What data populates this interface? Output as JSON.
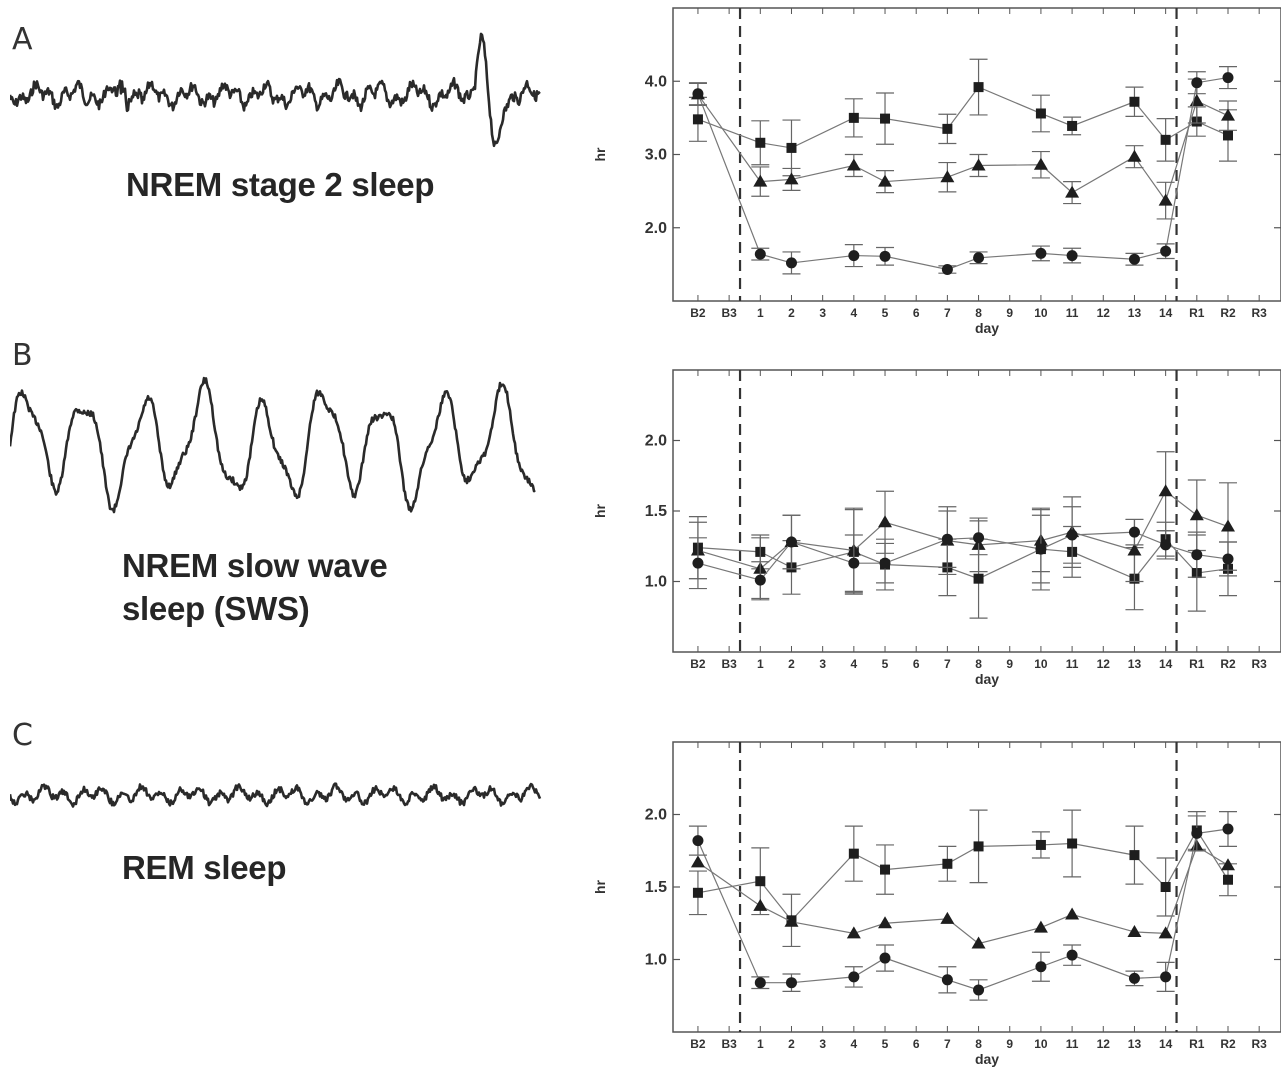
{
  "panels": [
    {
      "letter": "A",
      "eeg_label": [
        "NREM stage 2 sleep"
      ]
    },
    {
      "letter": "B",
      "eeg_label": [
        "NREM slow wave",
        "sleep (SWS)"
      ]
    },
    {
      "letter": "C",
      "eeg_label": [
        "REM sleep"
      ]
    }
  ],
  "chart_data": [
    {
      "type": "line",
      "ylabel": "hr",
      "xlabel": "day",
      "categories": [
        "B2",
        "B3",
        "1",
        "2",
        "3",
        "4",
        "5",
        "6",
        "7",
        "8",
        "9",
        "10",
        "11",
        "12",
        "13",
        "14",
        "R1",
        "R2",
        "R3"
      ],
      "y_tick_labels": [
        "2.0",
        "3.0",
        "4.0"
      ],
      "ylim": [
        1.0,
        5.0
      ],
      "dashed_lines_at": [
        "B3",
        "14"
      ],
      "series": [
        {
          "marker": "square",
          "x": [
            "B2",
            "1",
            "2",
            "4",
            "5",
            "7",
            "8",
            "10",
            "11",
            "13",
            "14",
            "R1",
            "R2"
          ],
          "y": [
            3.48,
            3.16,
            3.09,
            3.5,
            3.49,
            3.35,
            3.92,
            3.56,
            3.39,
            3.72,
            3.2,
            3.45,
            3.26
          ],
          "err": [
            0.3,
            0.3,
            0.38,
            0.26,
            0.35,
            0.2,
            0.38,
            0.25,
            0.12,
            0.2,
            0.29,
            0.2,
            0.35
          ]
        },
        {
          "marker": "triangle",
          "x": [
            "B2",
            "1",
            "2",
            "4",
            "5",
            "7",
            "8",
            "10",
            "11",
            "13",
            "14",
            "R1",
            "R2"
          ],
          "y": [
            3.82,
            2.63,
            2.66,
            2.85,
            2.63,
            2.69,
            2.85,
            2.86,
            2.48,
            2.97,
            2.37,
            3.73,
            3.53
          ],
          "err": [
            0.15,
            0.2,
            0.15,
            0.15,
            0.15,
            0.2,
            0.15,
            0.18,
            0.15,
            0.15,
            0.25,
            0.3,
            0.2
          ]
        },
        {
          "marker": "circle",
          "x": [
            "B2",
            "1",
            "2",
            "4",
            "5",
            "7",
            "8",
            "10",
            "11",
            "13",
            "14",
            "R1",
            "R2"
          ],
          "y": [
            3.83,
            1.64,
            1.52,
            1.62,
            1.61,
            1.43,
            1.59,
            1.65,
            1.62,
            1.57,
            1.68,
            3.98,
            4.05
          ],
          "err": [
            0.15,
            0.08,
            0.15,
            0.15,
            0.12,
            0.05,
            0.08,
            0.1,
            0.1,
            0.08,
            0.1,
            0.15,
            0.15
          ]
        }
      ]
    },
    {
      "type": "line",
      "ylabel": "hr",
      "xlabel": "day",
      "categories": [
        "B2",
        "B3",
        "1",
        "2",
        "3",
        "4",
        "5",
        "6",
        "7",
        "8",
        "9",
        "10",
        "11",
        "12",
        "13",
        "14",
        "R1",
        "R2",
        "R3"
      ],
      "y_tick_labels": [
        "1.0",
        "1.5",
        "2.0"
      ],
      "ylim": [
        0.5,
        2.5
      ],
      "dashed_lines_at": [
        "B3",
        "14"
      ],
      "series": [
        {
          "marker": "square",
          "x": [
            "B2",
            "1",
            "2",
            "4",
            "5",
            "7",
            "8",
            "10",
            "11",
            "13",
            "14",
            "R1",
            "R2"
          ],
          "y": [
            1.24,
            1.21,
            1.1,
            1.21,
            1.12,
            1.1,
            1.02,
            1.23,
            1.21,
            1.02,
            1.3,
            1.06,
            1.09
          ],
          "err": [
            0.22,
            0.12,
            0.19,
            0.3,
            0.18,
            0.2,
            0.28,
            0.29,
            0.18,
            0.22,
            0.12,
            0.27,
            0.19
          ]
        },
        {
          "marker": "triangle",
          "x": [
            "B2",
            "1",
            "2",
            "4",
            "5",
            "7",
            "8",
            "10",
            "11",
            "13",
            "14",
            "R1",
            "R2"
          ],
          "y": [
            1.22,
            1.09,
            1.28,
            1.22,
            1.42,
            1.29,
            1.26,
            1.29,
            1.35,
            1.22,
            1.64,
            1.47,
            1.39
          ],
          "err": [
            0.2,
            0.22,
            0.19,
            0.3,
            0.22,
            0.24,
            0.19,
            0.22,
            0.25,
            0.22,
            0.28,
            0.25,
            0.31
          ]
        },
        {
          "marker": "circle",
          "x": [
            "B2",
            "1",
            "2",
            "4",
            "5",
            "7",
            "8",
            "10",
            "11",
            "13",
            "14",
            "R1",
            "R2"
          ],
          "y": [
            1.13,
            1.01,
            1.28,
            1.13,
            1.13,
            1.3,
            1.31,
            1.23,
            1.33,
            1.35,
            1.26,
            1.19,
            1.16
          ],
          "err": [
            0.18,
            0.13,
            0.19,
            0.2,
            0.14,
            0.2,
            0.12,
            0.24,
            0.2,
            0.09,
            0.1,
            0.16,
            0.12
          ]
        }
      ]
    },
    {
      "type": "line",
      "ylabel": "hr",
      "xlabel": "day",
      "categories": [
        "B2",
        "B3",
        "1",
        "2",
        "3",
        "4",
        "5",
        "6",
        "7",
        "8",
        "9",
        "10",
        "11",
        "12",
        "13",
        "14",
        "R1",
        "R2",
        "R3"
      ],
      "y_tick_labels": [
        "1.0",
        "1.5",
        "2.0"
      ],
      "ylim": [
        0.5,
        2.5
      ],
      "dashed_lines_at": [
        "B3",
        "14"
      ],
      "series": [
        {
          "marker": "square",
          "x": [
            "B2",
            "1",
            "2",
            "4",
            "5",
            "7",
            "8",
            "10",
            "11",
            "13",
            "14",
            "R1",
            "R2"
          ],
          "y": [
            1.46,
            1.54,
            1.27,
            1.73,
            1.62,
            1.66,
            1.78,
            1.79,
            1.8,
            1.72,
            1.5,
            1.89,
            1.55
          ],
          "err": [
            0.15,
            0.23,
            0.18,
            0.19,
            0.17,
            0.12,
            0.25,
            0.09,
            0.23,
            0.2,
            0.2,
            0.13,
            0.11
          ]
        },
        {
          "marker": "triangle",
          "x": [
            "B2",
            "1",
            "2",
            "4",
            "5",
            "7",
            "8",
            "10",
            "11",
            "13",
            "14",
            "R1",
            "R2"
          ],
          "y": [
            1.67,
            1.37,
            1.26,
            1.18,
            1.25,
            1.28,
            1.11,
            1.22,
            1.31,
            1.19,
            1.18,
            1.78,
            1.65
          ]
        },
        {
          "marker": "circle",
          "x": [
            "B2",
            "1",
            "2",
            "4",
            "5",
            "7",
            "8",
            "10",
            "11",
            "13",
            "14",
            "R1",
            "R2"
          ],
          "y": [
            1.82,
            0.84,
            0.84,
            0.88,
            1.01,
            0.86,
            0.79,
            0.95,
            1.03,
            0.87,
            0.88,
            1.87,
            1.9
          ],
          "err": [
            0.1,
            0.04,
            0.06,
            0.07,
            0.09,
            0.09,
            0.07,
            0.1,
            0.07,
            0.05,
            0.1,
            0.12,
            0.12
          ]
        }
      ]
    }
  ]
}
